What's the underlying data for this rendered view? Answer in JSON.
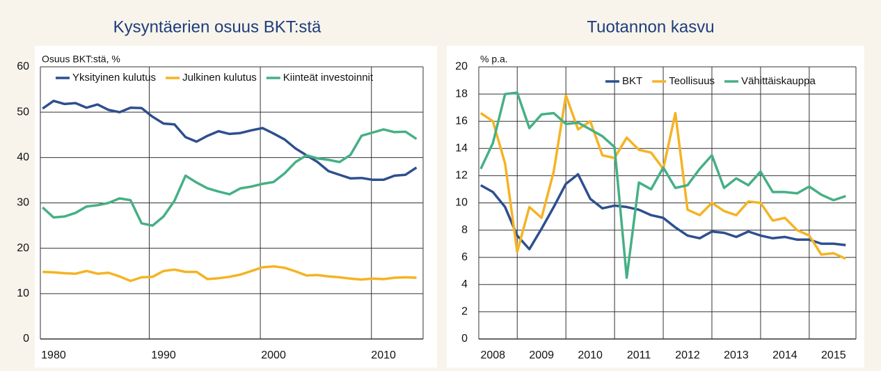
{
  "chart_data": [
    {
      "type": "line",
      "title": "Kysyntäerien osuus BKT:stä",
      "ylabel": "Osuus BKT:stä, %",
      "x": [
        1979,
        1980,
        1981,
        1982,
        1983,
        1984,
        1985,
        1986,
        1987,
        1988,
        1989,
        1990,
        1991,
        1992,
        1993,
        1994,
        1995,
        1996,
        1997,
        1998,
        1999,
        2000,
        2001,
        2002,
        2003,
        2004,
        2005,
        2006,
        2007,
        2008,
        2009,
        2010,
        2011,
        2012,
        2013
      ],
      "series": [
        {
          "name": "Yksityinen kulutus",
          "color": "#2e4f8f",
          "values": [
            50.8,
            52.5,
            51.8,
            52,
            51,
            51.7,
            50.5,
            50,
            51,
            50.9,
            49,
            47.5,
            47.3,
            44.5,
            43.5,
            44.8,
            45.8,
            45.2,
            45.4,
            46,
            46.5,
            45.3,
            44,
            42,
            40.5,
            39,
            37,
            36.2,
            35.4,
            35.5,
            35.1,
            35.1,
            36,
            36.2,
            37.8
          ]
        },
        {
          "name": "Julkinen kulutus",
          "color": "#f5b323",
          "values": [
            14.8,
            14.7,
            14.5,
            14.4,
            15,
            14.4,
            14.6,
            13.8,
            12.8,
            13.6,
            13.7,
            15,
            15.3,
            14.8,
            14.8,
            13.2,
            13.4,
            13.7,
            14.2,
            15,
            15.8,
            16,
            15.7,
            14.9,
            14,
            14.1,
            13.8,
            13.6,
            13.3,
            13.1,
            13.3,
            13.2,
            13.5,
            13.6,
            13.5
          ]
        },
        {
          "name": "Kiinteät investoinnit",
          "color": "#45b085",
          "values": [
            29,
            26.8,
            27,
            27.8,
            29.2,
            29.5,
            30,
            31,
            30.6,
            25.5,
            25,
            27,
            30.5,
            36,
            34.5,
            33.2,
            32.5,
            31.9,
            33.2,
            33.6,
            34.2,
            34.6,
            36.5,
            39,
            40.5,
            39.8,
            39.5,
            39,
            40.6,
            44.8,
            45.5,
            46.2,
            45.6,
            45.7,
            44.1
          ]
        }
      ],
      "xlim": [
        1978.8,
        2013.6
      ],
      "xticks": [
        1980,
        1990,
        2000,
        2010
      ],
      "xgrid": [
        1988.7,
        1998.8,
        2008.9
      ],
      "ylim": [
        0,
        60
      ],
      "yticks": [
        0,
        10,
        20,
        30,
        40,
        50,
        60
      ],
      "grid": true
    },
    {
      "type": "line",
      "title": "Tuotannon kasvu",
      "ylabel": "% p.a.",
      "x": [
        2007.75,
        2008,
        2008.25,
        2008.5,
        2008.75,
        2009,
        2009.25,
        2009.5,
        2009.75,
        2010,
        2010.25,
        2010.5,
        2010.75,
        2011,
        2011.25,
        2011.5,
        2011.75,
        2012,
        2012.25,
        2012.5,
        2012.75,
        2013,
        2013.25,
        2013.5,
        2013.75,
        2014,
        2014.25,
        2014.5,
        2014.75,
        2015,
        2015.25
      ],
      "series": [
        {
          "name": "BKT",
          "color": "#2e4f8f",
          "values": [
            11.3,
            10.8,
            9.7,
            7.6,
            6.6,
            8.1,
            9.7,
            11.4,
            12.1,
            10.3,
            9.6,
            9.8,
            9.7,
            9.5,
            9.1,
            8.9,
            8.2,
            7.6,
            7.4,
            7.9,
            7.8,
            7.5,
            7.9,
            7.6,
            7.4,
            7.5,
            7.3,
            7.3,
            7.0,
            7.0,
            6.9
          ]
        },
        {
          "name": "Teollisuus",
          "color": "#f5b323",
          "values": [
            16.6,
            16,
            12.9,
            6.4,
            9.7,
            8.9,
            12.3,
            17.9,
            15.4,
            16,
            13.5,
            13.3,
            14.8,
            13.9,
            13.7,
            12.5,
            16.6,
            9.5,
            9.1,
            10,
            9.4,
            9.1,
            10.1,
            10,
            8.7,
            8.9,
            8,
            7.6,
            6.2,
            6.3,
            5.9
          ]
        },
        {
          "name": "Vähittäiskauppa",
          "color": "#45b085",
          "values": [
            12.5,
            14.4,
            18,
            18.1,
            15.5,
            16.5,
            16.6,
            15.8,
            15.9,
            15.4,
            14.9,
            14.1,
            4.5,
            11.5,
            11.0,
            12.6,
            11.1,
            11.3,
            12.5,
            13.5,
            11.1,
            11.8,
            11.3,
            12.3,
            10.8,
            10.8,
            10.7,
            11.2,
            10.6,
            10.2,
            10.5
          ]
        }
      ],
      "xlim": [
        2007.71,
        2015.46
      ],
      "xticks": [
        2008,
        2009,
        2010,
        2011,
        2012,
        2013,
        2014,
        2015
      ],
      "xgrid": [
        2008.5,
        2009.5,
        2010.5,
        2011.5,
        2012.5,
        2013.5,
        2014.5
      ],
      "ylim": [
        0,
        20
      ],
      "yticks": [
        0,
        2,
        4,
        6,
        8,
        10,
        12,
        14,
        16,
        18,
        20
      ],
      "grid": true
    }
  ]
}
